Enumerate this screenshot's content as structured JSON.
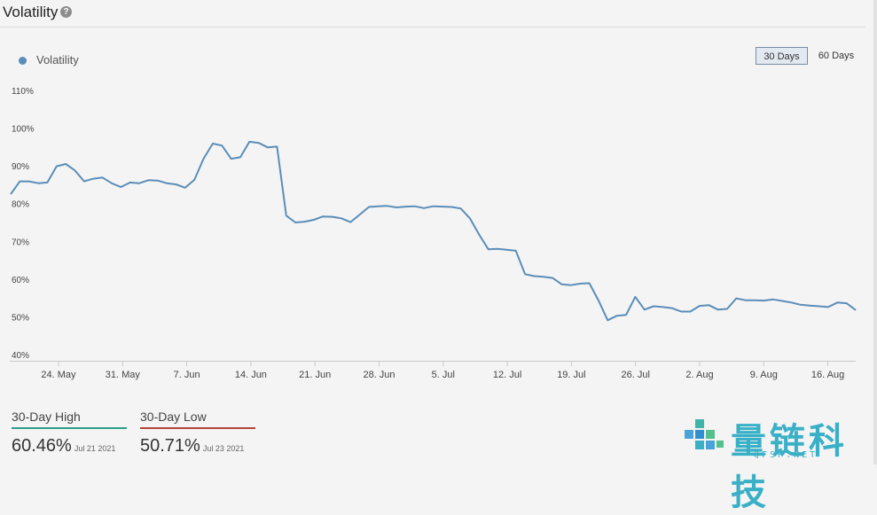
{
  "header": {
    "title": "Volatility"
  },
  "legend": {
    "label": "Volatility",
    "color": "#5b8db8"
  },
  "range_buttons": {
    "days30": "30 Days",
    "days60": "60 Days",
    "active": "30 Days"
  },
  "stats": {
    "high": {
      "label": "30-Day High",
      "value": "60.46%",
      "date": "Jul 21 2021",
      "color": "#2aa08a"
    },
    "low": {
      "label": "30-Day Low",
      "value": "50.71%",
      "date": "Jul 23 2021",
      "color": "#b5443a"
    }
  },
  "watermark": {
    "text": "量链科技",
    "sub": "QFSP.NET"
  },
  "chart_data": {
    "type": "line",
    "title": "",
    "xlabel": "",
    "ylabel": "",
    "ylim": [
      40,
      110
    ],
    "yticks": [
      "40%",
      "50%",
      "60%",
      "70%",
      "80%",
      "90%",
      "100%",
      "110%"
    ],
    "xticks": [
      "24. May",
      "31. May",
      "7. Jun",
      "14. Jun",
      "21. Jun",
      "28. Jun",
      "5. Jul",
      "12. Jul",
      "19. Jul",
      "26. Jul",
      "2. Aug",
      "9. Aug",
      "16. Aug"
    ],
    "series": [
      {
        "name": "Volatility",
        "color": "#5b8db8",
        "values": [
          82.5,
          85.9,
          85.9,
          85.4,
          85.6,
          89.9,
          90.5,
          88.8,
          85.9,
          86.6,
          86.9,
          85.4,
          84.4,
          85.6,
          85.4,
          86.2,
          86.1,
          85.4,
          85.1,
          84.2,
          86.3,
          91.9,
          95.9,
          95.4,
          91.9,
          92.3,
          96.4,
          96.1,
          94.9,
          95.1,
          76.8,
          75.0,
          75.2,
          75.7,
          76.6,
          76.5,
          76.1,
          75.1,
          77.1,
          79.1,
          79.3,
          79.4,
          79.0,
          79.2,
          79.3,
          78.8,
          79.3,
          79.2,
          79.1,
          78.7,
          76.1,
          71.8,
          67.9,
          68.0,
          67.8,
          67.5,
          61.3,
          60.8,
          60.6,
          60.3,
          58.6,
          58.4,
          58.8,
          58.9,
          54.3,
          49.1,
          50.3,
          50.5,
          55.3,
          51.9,
          52.8,
          52.6,
          52.3,
          51.4,
          51.4,
          52.9,
          53.1,
          51.9,
          52.1,
          54.9,
          54.4,
          54.4,
          54.3,
          54.6,
          54.2,
          53.8,
          53.2,
          53.0,
          52.8,
          52.6,
          53.8,
          53.6,
          51.8
        ]
      }
    ]
  }
}
